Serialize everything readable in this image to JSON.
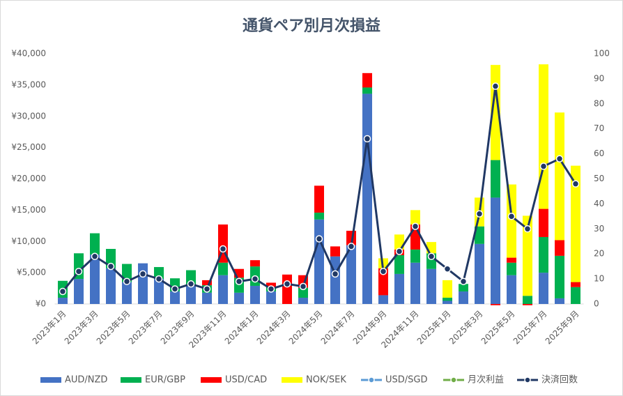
{
  "chart_data": {
    "type": "bar",
    "title": "通貨ペア別月次損益",
    "categories": [
      "2023年1月",
      null,
      "2023年3月",
      null,
      "2023年5月",
      null,
      "2023年7月",
      null,
      "2023年9月",
      null,
      "2023年11月",
      null,
      "2024年1月",
      null,
      "2024年3月",
      null,
      "2024年5月",
      null,
      "2024年7月",
      null,
      "2024年9月",
      null,
      "2024年11月",
      null,
      "2025年1月",
      null,
      "2025年3月",
      null,
      "2025年5月",
      null,
      "2025年7月",
      null,
      "2025年9月"
    ],
    "series": [
      {
        "name": "AUD/NZD",
        "type": "bar",
        "color": "#4472c4",
        "values": [
          1000,
          4000,
          7900,
          5700,
          3500,
          6500,
          4000,
          2000,
          2900,
          1800,
          4600,
          1800,
          2900,
          2000,
          0,
          1000,
          13500,
          7600,
          9400,
          33600,
          1400,
          4800,
          6600,
          5600,
          500,
          2000,
          9600,
          17000,
          4600,
          0,
          5000,
          900,
          0
        ]
      },
      {
        "name": "EUR/GBP",
        "type": "bar",
        "color": "#00b050",
        "values": [
          2700,
          4100,
          3400,
          3100,
          2900,
          0,
          1900,
          2100,
          2500,
          1200,
          2000,
          2400,
          3100,
          700,
          0,
          1600,
          1100,
          0,
          0,
          1000,
          0,
          3000,
          2100,
          2500,
          500,
          1200,
          2800,
          6000,
          2000,
          1300,
          5700,
          6800,
          2700
        ]
      },
      {
        "name": "USD/CAD",
        "type": "bar",
        "color": "#ff0000",
        "values": [
          0,
          0,
          0,
          0,
          0,
          0,
          0,
          0,
          0,
          800,
          6100,
          1400,
          1000,
          700,
          4700,
          2000,
          4300,
          1600,
          2300,
          2300,
          4300,
          900,
          4000,
          0,
          0,
          0,
          0,
          -200,
          800,
          -200,
          4500,
          2500,
          800
        ]
      },
      {
        "name": "NOK/SEK",
        "type": "bar",
        "color": "#ffff00",
        "values": [
          0,
          0,
          0,
          0,
          0,
          0,
          0,
          0,
          0,
          0,
          0,
          0,
          0,
          0,
          0,
          0,
          0,
          0,
          0,
          0,
          1600,
          2400,
          2300,
          1800,
          2800,
          0,
          4600,
          15200,
          11700,
          12800,
          23100,
          20400,
          18600
        ]
      },
      {
        "name": "USD/SGD",
        "type": "line",
        "color": "#5b9bd5",
        "values": [
          null,
          null,
          null,
          null,
          null,
          null,
          null,
          null,
          null,
          null,
          null,
          null,
          null,
          null,
          null,
          null,
          null,
          null,
          null,
          null,
          null,
          null,
          null,
          null,
          null,
          null,
          null,
          null,
          null,
          null,
          null,
          null,
          null
        ]
      },
      {
        "name": "月次利益",
        "type": "line",
        "color": "#70ad47",
        "values": [
          null,
          null,
          null,
          null,
          null,
          null,
          null,
          null,
          null,
          null,
          null,
          null,
          null,
          null,
          null,
          null,
          null,
          null,
          null,
          null,
          null,
          null,
          null,
          null,
          null,
          null,
          null,
          null,
          null,
          null,
          null,
          null,
          null
        ]
      },
      {
        "name": "決済回数",
        "type": "line",
        "axis": "y2",
        "color": "#203864",
        "values": [
          5,
          13,
          19,
          15,
          9,
          12,
          10,
          6,
          8,
          6,
          22,
          9,
          10,
          6,
          8,
          7,
          26,
          12,
          23,
          66,
          13,
          21,
          31,
          19,
          14,
          9,
          36,
          87,
          35,
          30,
          55,
          58,
          48
        ]
      }
    ],
    "ylim": [
      0,
      40000
    ],
    "yticks": [
      {
        "value": 0,
        "label": "¥0"
      },
      {
        "value": 5000,
        "label": "¥5,000"
      },
      {
        "value": 10000,
        "label": "¥10,000"
      },
      {
        "value": 15000,
        "label": "¥15,000"
      },
      {
        "value": 20000,
        "label": "¥20,000"
      },
      {
        "value": 25000,
        "label": "¥25,000"
      },
      {
        "value": 30000,
        "label": "¥30,000"
      },
      {
        "value": 35000,
        "label": "¥35,000"
      },
      {
        "value": 40000,
        "label": "¥40,000"
      }
    ],
    "y2lim": [
      0,
      100
    ],
    "y2ticks": [
      0,
      10,
      20,
      30,
      40,
      50,
      60,
      70,
      80,
      90,
      100
    ],
    "stacked": true,
    "grid": false,
    "legend": "bottom"
  }
}
